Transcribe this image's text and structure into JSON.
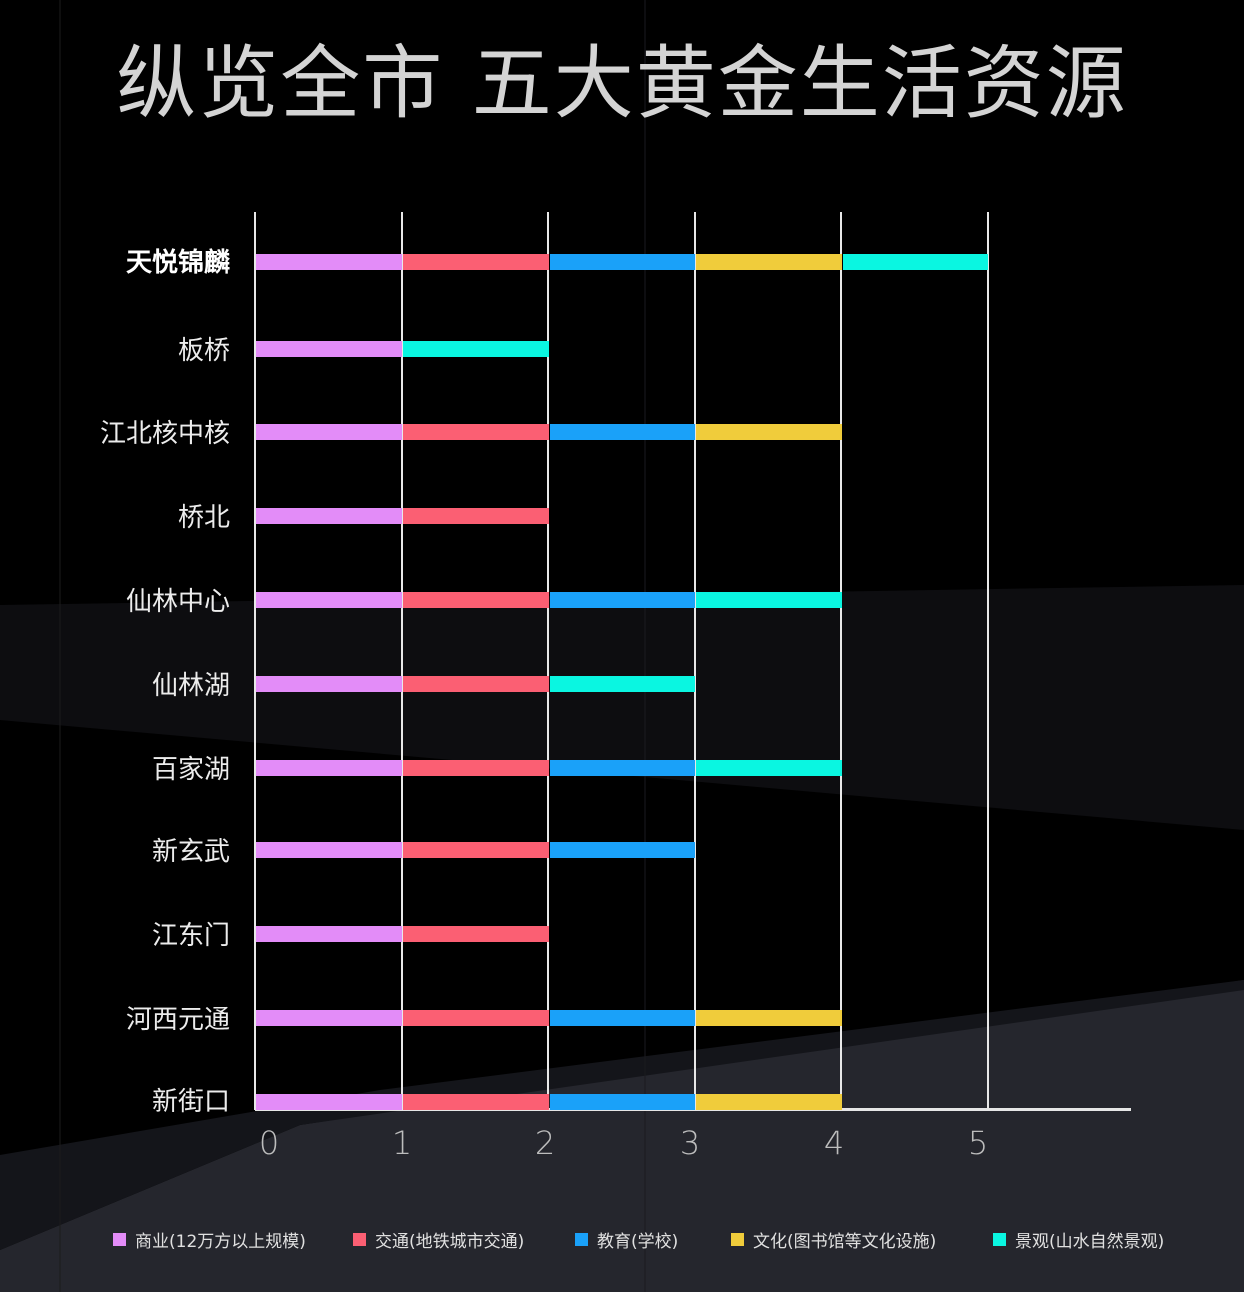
{
  "title": "纵览全市 五大黄金生活资源",
  "chart_data": {
    "type": "bar",
    "orientation": "horizontal",
    "stacked": true,
    "title": "纵览全市 五大黄金生活资源",
    "xlabel": "",
    "ylabel": "",
    "xlim": [
      0,
      6
    ],
    "x_ticks": [
      "0",
      "1",
      "2",
      "3",
      "4",
      "5"
    ],
    "grid": true,
    "legend_position": "bottom",
    "categories": [
      "天悦锦麟",
      "板桥",
      "江北核中核",
      "桥北",
      "仙林中心",
      "仙林湖",
      "百家湖",
      "新玄武",
      "江东门",
      "河西元通",
      "新街口"
    ],
    "highlight_category": "天悦锦麟",
    "series": [
      {
        "name": "商业(12万方以上规模)",
        "color": "#e38cf8",
        "values": [
          1,
          1,
          1,
          1,
          1,
          1,
          1,
          1,
          1,
          1,
          1
        ]
      },
      {
        "name": "交通(地铁城市交通)",
        "color": "#fb5f73",
        "values": [
          1,
          0,
          1,
          1,
          1,
          1,
          1,
          1,
          1,
          1,
          1
        ]
      },
      {
        "name": "教育(学校)",
        "color": "#1aa1f9",
        "values": [
          1,
          0,
          1,
          0,
          1,
          0,
          1,
          1,
          0,
          1,
          1
        ]
      },
      {
        "name": "文化(图书馆等文化设施)",
        "color": "#f0cc3b",
        "values": [
          1,
          0,
          1,
          0,
          0,
          0,
          0,
          0,
          0,
          1,
          1
        ]
      },
      {
        "name": "景观(山水自然景观)",
        "color": "#0af6e1",
        "values": [
          1,
          1,
          0,
          0,
          1,
          1,
          1,
          0,
          0,
          0,
          0
        ]
      }
    ],
    "totals": [
      5,
      2,
      4,
      2,
      4,
      3,
      4,
      3,
      2,
      4,
      4
    ]
  },
  "labels": {
    "rows": [
      "天悦锦麟",
      "板桥",
      "江北核中核",
      "桥北",
      "仙林中心",
      "仙林湖",
      "百家湖",
      "新玄武",
      "江东门",
      "河西元通",
      "新街口"
    ],
    "ticks": [
      "0",
      "1",
      "2",
      "3",
      "4",
      "5"
    ],
    "legend": [
      "商业(12万方以上规模)",
      "交通(地铁城市交通)",
      "教育(学校)",
      "文化(图书馆等文化设施)",
      "景观(山水自然景观)"
    ]
  }
}
